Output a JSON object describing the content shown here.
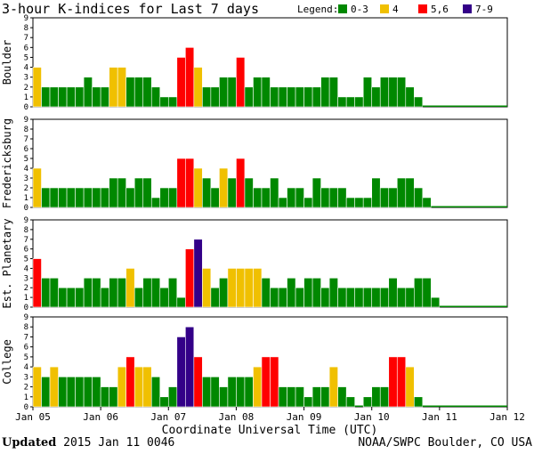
{
  "title": "3-hour K-indices for Last 7 days",
  "legend": {
    "label": "Legend:",
    "items": [
      {
        "label": "0-3",
        "color": "#008800"
      },
      {
        "label": "4",
        "color": "#f0c000"
      },
      {
        "label": "5,6",
        "color": "#ff0000"
      },
      {
        "label": "7-9",
        "color": "#330088"
      }
    ]
  },
  "footer": {
    "updated_label": "Updated",
    "updated_value": "2015 Jan 11 0046",
    "source": "NOAA/SWPC Boulder, CO USA"
  },
  "chart_data": {
    "type": "bar",
    "xlabel": "Coordinate Universal Time (UTC)",
    "x_ticks": [
      "Jan 05",
      "Jan 06",
      "Jan 07",
      "Jan 08",
      "Jan 09",
      "Jan 10",
      "Jan 11",
      "Jan 12"
    ],
    "bars_per_day": 8,
    "ylim": [
      0,
      9
    ],
    "y_ticks": [
      0,
      1,
      2,
      3,
      4,
      5,
      6,
      7,
      8,
      9
    ],
    "series": [
      {
        "name": "Boulder",
        "values": [
          4,
          2,
          2,
          2,
          2,
          2,
          3,
          2,
          2,
          4,
          4,
          3,
          3,
          3,
          2,
          1,
          1,
          5,
          6,
          4,
          2,
          2,
          3,
          3,
          5,
          2,
          3,
          3,
          2,
          2,
          2,
          2,
          2,
          2,
          3,
          3,
          1,
          1,
          1,
          3,
          2,
          3,
          3,
          3,
          2,
          1
        ]
      },
      {
        "name": "Fredericksburg",
        "values": [
          4,
          2,
          2,
          2,
          2,
          2,
          2,
          2,
          2,
          3,
          3,
          2,
          3,
          3,
          1,
          2,
          2,
          5,
          5,
          4,
          3,
          2,
          4,
          3,
          5,
          3,
          2,
          2,
          3,
          1,
          2,
          2,
          1,
          3,
          2,
          2,
          2,
          1,
          1,
          1,
          3,
          2,
          2,
          3,
          3,
          2,
          1
        ]
      },
      {
        "name": "Est. Planetary",
        "values": [
          5,
          3,
          3,
          2,
          2,
          2,
          3,
          3,
          2,
          3,
          3,
          4,
          2,
          3,
          3,
          2,
          3,
          1,
          6,
          7,
          4,
          2,
          3,
          4,
          4,
          4,
          4,
          3,
          2,
          2,
          3,
          2,
          3,
          3,
          2,
          3,
          2,
          2,
          2,
          2,
          2,
          2,
          3,
          2,
          2,
          3,
          3,
          1
        ]
      },
      {
        "name": "College",
        "values": [
          4,
          3,
          4,
          3,
          3,
          3,
          3,
          3,
          2,
          2,
          4,
          5,
          4,
          4,
          3,
          1,
          2,
          7,
          8,
          5,
          3,
          3,
          2,
          3,
          3,
          3,
          4,
          5,
          5,
          2,
          2,
          2,
          1,
          2,
          2,
          4,
          2,
          1,
          0,
          1,
          2,
          2,
          5,
          5,
          4,
          1
        ]
      }
    ]
  }
}
